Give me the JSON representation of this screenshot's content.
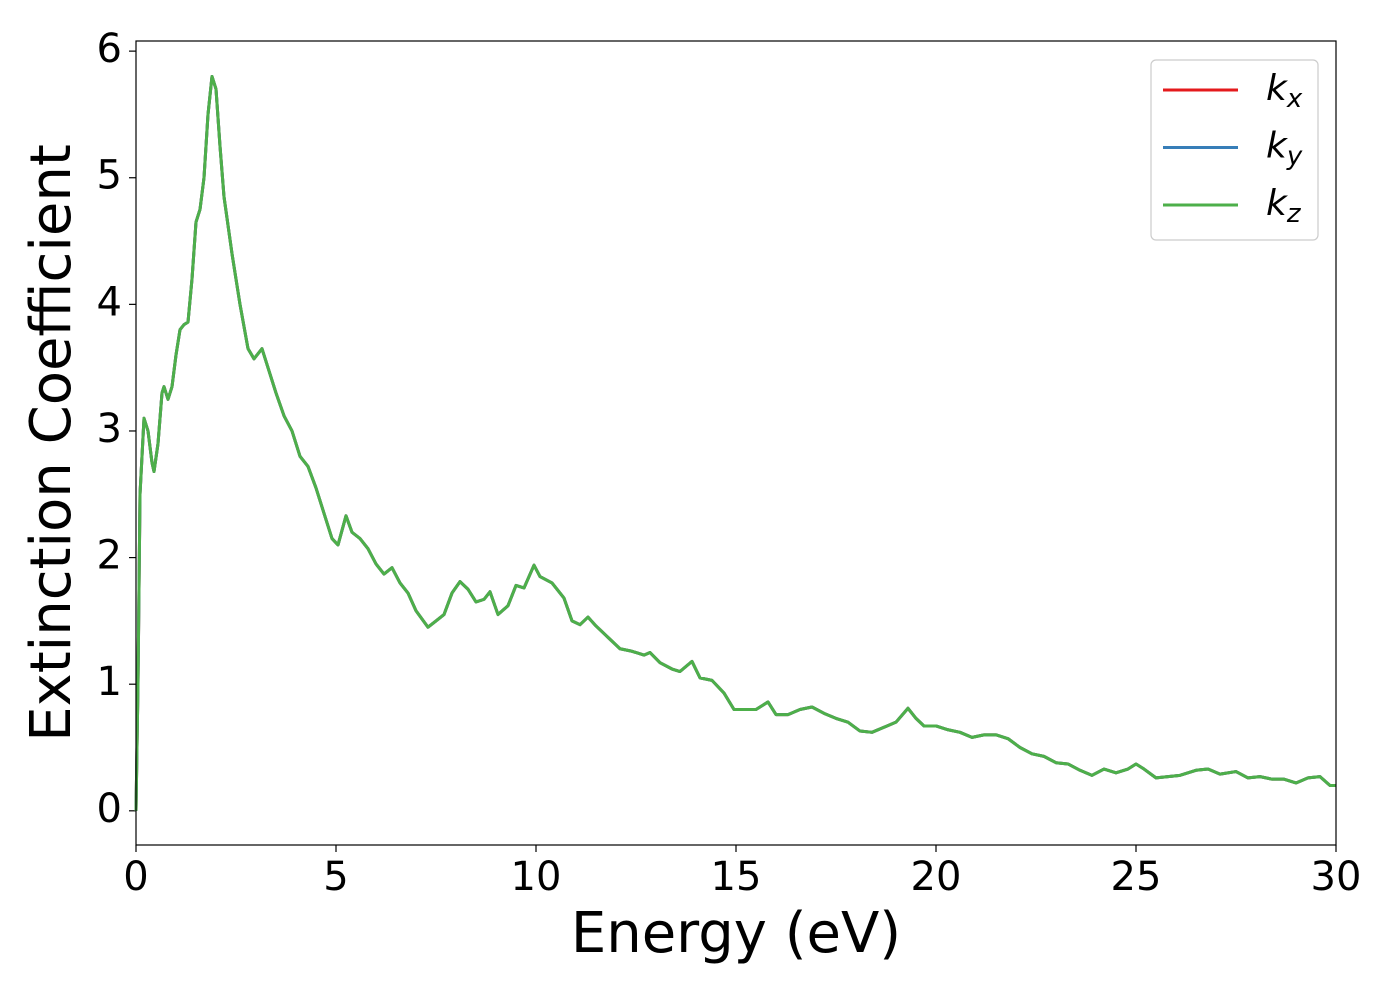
{
  "chart_data": {
    "type": "line",
    "xlabel": "Energy (eV)",
    "ylabel": "Extinction Coefficient",
    "x": [
      0,
      0.05,
      0.1,
      0.2,
      0.3,
      0.4,
      0.45,
      0.55,
      0.65,
      0.7,
      0.8,
      0.9,
      1.0,
      1.1,
      1.2,
      1.3,
      1.4,
      1.5,
      1.6,
      1.7,
      1.8,
      1.9,
      2.0,
      2.1,
      2.2,
      2.4,
      2.6,
      2.8,
      2.95,
      3.15,
      3.3,
      3.5,
      3.7,
      3.9,
      4.1,
      4.3,
      4.5,
      4.7,
      4.9,
      5.05,
      5.25,
      5.4,
      5.6,
      5.8,
      6.0,
      6.2,
      6.4,
      6.6,
      6.8,
      7.0,
      7.3,
      7.5,
      7.7,
      7.9,
      8.1,
      8.3,
      8.5,
      8.7,
      8.85,
      9.05,
      9.3,
      9.5,
      9.7,
      9.95,
      10.1,
      10.4,
      10.7,
      10.9,
      11.1,
      11.3,
      11.5,
      11.8,
      12.1,
      12.4,
      12.7,
      12.85,
      13.1,
      13.4,
      13.6,
      13.9,
      14.1,
      14.4,
      14.7,
      14.95,
      15.2,
      15.5,
      15.8,
      16.0,
      16.3,
      16.6,
      16.9,
      17.2,
      17.5,
      17.8,
      18.1,
      18.4,
      18.7,
      19.0,
      19.3,
      19.5,
      19.7,
      20.0,
      20.3,
      20.6,
      20.9,
      21.2,
      21.5,
      21.8,
      22.1,
      22.4,
      22.7,
      23.0,
      23.3,
      23.6,
      23.9,
      24.2,
      24.5,
      24.8,
      25.0,
      25.2,
      25.5,
      25.8,
      26.1,
      26.5,
      26.8,
      27.1,
      27.5,
      27.8,
      28.1,
      28.4,
      28.7,
      29.0,
      29.3,
      29.6,
      29.85,
      30.0
    ],
    "series": [
      {
        "name": "kx",
        "color": "#e41a1c",
        "values": [
          0,
          1.0,
          2.5,
          3.1,
          3.0,
          2.75,
          2.68,
          2.9,
          3.3,
          3.35,
          3.25,
          3.35,
          3.6,
          3.8,
          3.84,
          3.86,
          4.2,
          4.65,
          4.75,
          5.0,
          5.5,
          5.8,
          5.7,
          5.25,
          4.85,
          4.4,
          4.0,
          3.65,
          3.57,
          3.65,
          3.5,
          3.3,
          3.12,
          3.0,
          2.8,
          2.72,
          2.55,
          2.35,
          2.15,
          2.1,
          2.33,
          2.2,
          2.15,
          2.07,
          1.95,
          1.87,
          1.92,
          1.8,
          1.72,
          1.58,
          1.45,
          1.5,
          1.55,
          1.72,
          1.81,
          1.75,
          1.65,
          1.67,
          1.73,
          1.55,
          1.62,
          1.78,
          1.76,
          1.94,
          1.85,
          1.8,
          1.68,
          1.5,
          1.47,
          1.53,
          1.46,
          1.37,
          1.28,
          1.26,
          1.23,
          1.25,
          1.17,
          1.12,
          1.1,
          1.18,
          1.05,
          1.03,
          0.93,
          0.8,
          0.8,
          0.8,
          0.86,
          0.76,
          0.76,
          0.8,
          0.82,
          0.77,
          0.73,
          0.7,
          0.63,
          0.62,
          0.66,
          0.7,
          0.81,
          0.73,
          0.67,
          0.67,
          0.64,
          0.62,
          0.58,
          0.6,
          0.6,
          0.57,
          0.5,
          0.45,
          0.43,
          0.38,
          0.37,
          0.32,
          0.28,
          0.33,
          0.3,
          0.33,
          0.37,
          0.33,
          0.26,
          0.27,
          0.28,
          0.32,
          0.33,
          0.29,
          0.31,
          0.26,
          0.27,
          0.25,
          0.25,
          0.22,
          0.26,
          0.27,
          0.2,
          0.2
        ]
      },
      {
        "name": "ky",
        "color": "#377eb8",
        "values": [
          0,
          1.0,
          2.5,
          3.1,
          3.0,
          2.75,
          2.68,
          2.9,
          3.3,
          3.35,
          3.25,
          3.35,
          3.6,
          3.8,
          3.84,
          3.86,
          4.2,
          4.65,
          4.75,
          5.0,
          5.5,
          5.8,
          5.7,
          5.25,
          4.85,
          4.4,
          4.0,
          3.65,
          3.57,
          3.65,
          3.5,
          3.3,
          3.12,
          3.0,
          2.8,
          2.72,
          2.55,
          2.35,
          2.15,
          2.1,
          2.33,
          2.2,
          2.15,
          2.07,
          1.95,
          1.87,
          1.92,
          1.8,
          1.72,
          1.58,
          1.45,
          1.5,
          1.55,
          1.72,
          1.81,
          1.75,
          1.65,
          1.67,
          1.73,
          1.55,
          1.62,
          1.78,
          1.76,
          1.94,
          1.85,
          1.8,
          1.68,
          1.5,
          1.47,
          1.53,
          1.46,
          1.37,
          1.28,
          1.26,
          1.23,
          1.25,
          1.17,
          1.12,
          1.1,
          1.18,
          1.05,
          1.03,
          0.93,
          0.8,
          0.8,
          0.8,
          0.86,
          0.76,
          0.76,
          0.8,
          0.82,
          0.77,
          0.73,
          0.7,
          0.63,
          0.62,
          0.66,
          0.7,
          0.81,
          0.73,
          0.67,
          0.67,
          0.64,
          0.62,
          0.58,
          0.6,
          0.6,
          0.57,
          0.5,
          0.45,
          0.43,
          0.38,
          0.37,
          0.32,
          0.28,
          0.33,
          0.3,
          0.33,
          0.37,
          0.33,
          0.26,
          0.27,
          0.28,
          0.32,
          0.33,
          0.29,
          0.31,
          0.26,
          0.27,
          0.25,
          0.25,
          0.22,
          0.26,
          0.27,
          0.2,
          0.2
        ]
      },
      {
        "name": "kz",
        "color": "#4daf4a",
        "values": [
          0,
          1.0,
          2.5,
          3.1,
          3.0,
          2.75,
          2.68,
          2.9,
          3.3,
          3.35,
          3.25,
          3.35,
          3.6,
          3.8,
          3.84,
          3.86,
          4.2,
          4.65,
          4.75,
          5.0,
          5.5,
          5.8,
          5.7,
          5.25,
          4.85,
          4.4,
          4.0,
          3.65,
          3.57,
          3.65,
          3.5,
          3.3,
          3.12,
          3.0,
          2.8,
          2.72,
          2.55,
          2.35,
          2.15,
          2.1,
          2.33,
          2.2,
          2.15,
          2.07,
          1.95,
          1.87,
          1.92,
          1.8,
          1.72,
          1.58,
          1.45,
          1.5,
          1.55,
          1.72,
          1.81,
          1.75,
          1.65,
          1.67,
          1.73,
          1.55,
          1.62,
          1.78,
          1.76,
          1.94,
          1.85,
          1.8,
          1.68,
          1.5,
          1.47,
          1.53,
          1.46,
          1.37,
          1.28,
          1.26,
          1.23,
          1.25,
          1.17,
          1.12,
          1.1,
          1.18,
          1.05,
          1.03,
          0.93,
          0.8,
          0.8,
          0.8,
          0.86,
          0.76,
          0.76,
          0.8,
          0.82,
          0.77,
          0.73,
          0.7,
          0.63,
          0.62,
          0.66,
          0.7,
          0.81,
          0.73,
          0.67,
          0.67,
          0.64,
          0.62,
          0.58,
          0.6,
          0.6,
          0.57,
          0.5,
          0.45,
          0.43,
          0.38,
          0.37,
          0.32,
          0.28,
          0.33,
          0.3,
          0.33,
          0.37,
          0.33,
          0.26,
          0.27,
          0.28,
          0.32,
          0.33,
          0.29,
          0.31,
          0.26,
          0.27,
          0.25,
          0.25,
          0.22,
          0.26,
          0.27,
          0.2,
          0.2
        ]
      }
    ],
    "xlim": [
      0,
      30
    ],
    "xticks": [
      0,
      5,
      10,
      15,
      20,
      25,
      30
    ],
    "ylim": [
      -0.27,
      6.08
    ],
    "yticks": [
      0,
      1,
      2,
      3,
      4,
      5,
      6
    ],
    "grid": false,
    "legend": "upper right"
  }
}
